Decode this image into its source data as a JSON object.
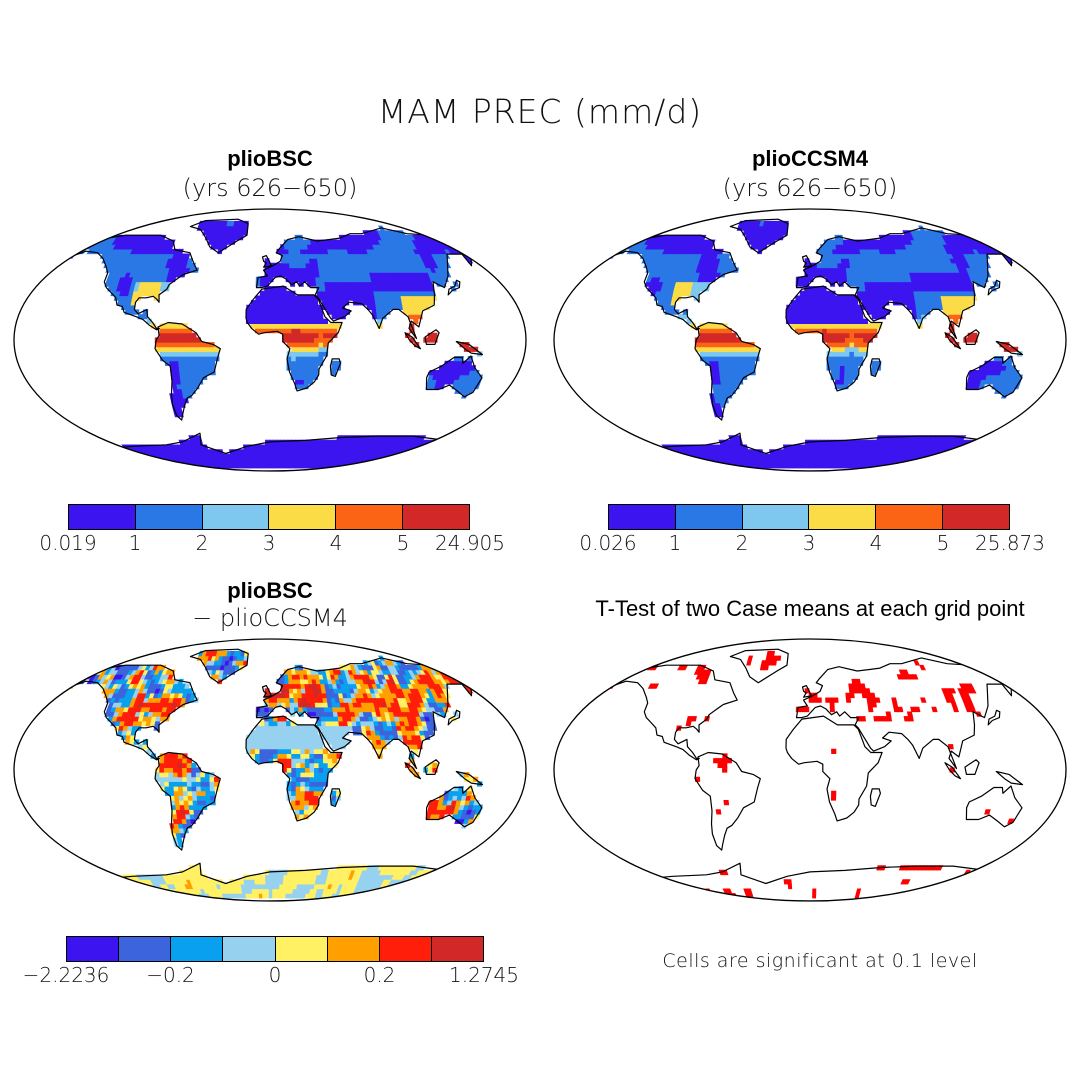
{
  "figure": {
    "title": "MAM PREC (mm/d)"
  },
  "panels": [
    {
      "id": "pliobsc",
      "title": "plioBSC",
      "subtitle": "(yrs 626−650)",
      "style": "field"
    },
    {
      "id": "pliocssm4",
      "title": "plioCCSM4",
      "subtitle": "(yrs 626−650)",
      "style": "field"
    },
    {
      "id": "difference",
      "title": "plioBSC",
      "subtitle": "− plioCCSM4",
      "style": "diff"
    },
    {
      "id": "ttest",
      "title": "T-Test of two Case means at each grid point",
      "note": "Cells are significant at 0.1 level",
      "style": "ttest"
    }
  ],
  "colorbars": [
    {
      "id": "cbar-pliobsc",
      "colors": [
        "#3c14f0",
        "#2a78e6",
        "#7ec8f0",
        "#fcdc46",
        "#fa6414",
        "#d22828"
      ],
      "labels": [
        "0.019",
        "1",
        "2",
        "3",
        "4",
        "5",
        "24.905"
      ]
    },
    {
      "id": "cbar-pliocssm4",
      "colors": [
        "#3c14f0",
        "#2a78e6",
        "#7ec8f0",
        "#fcdc46",
        "#fa6414",
        "#d22828"
      ],
      "labels": [
        "0.026",
        "1",
        "2",
        "3",
        "4",
        "5",
        "25.873"
      ]
    },
    {
      "id": "cbar-difference",
      "colors": [
        "#3c14f0",
        "#3c64dc",
        "#0aa0f0",
        "#96d2f0",
        "#fff064",
        "#ffa000",
        "#ff1e0a",
        "#d22828"
      ],
      "labels": [
        "−2.2236",
        "−0.2",
        "0",
        "0.2",
        "1.2745"
      ]
    }
  ],
  "legend": {
    "significance_color": "#ff0000"
  }
}
